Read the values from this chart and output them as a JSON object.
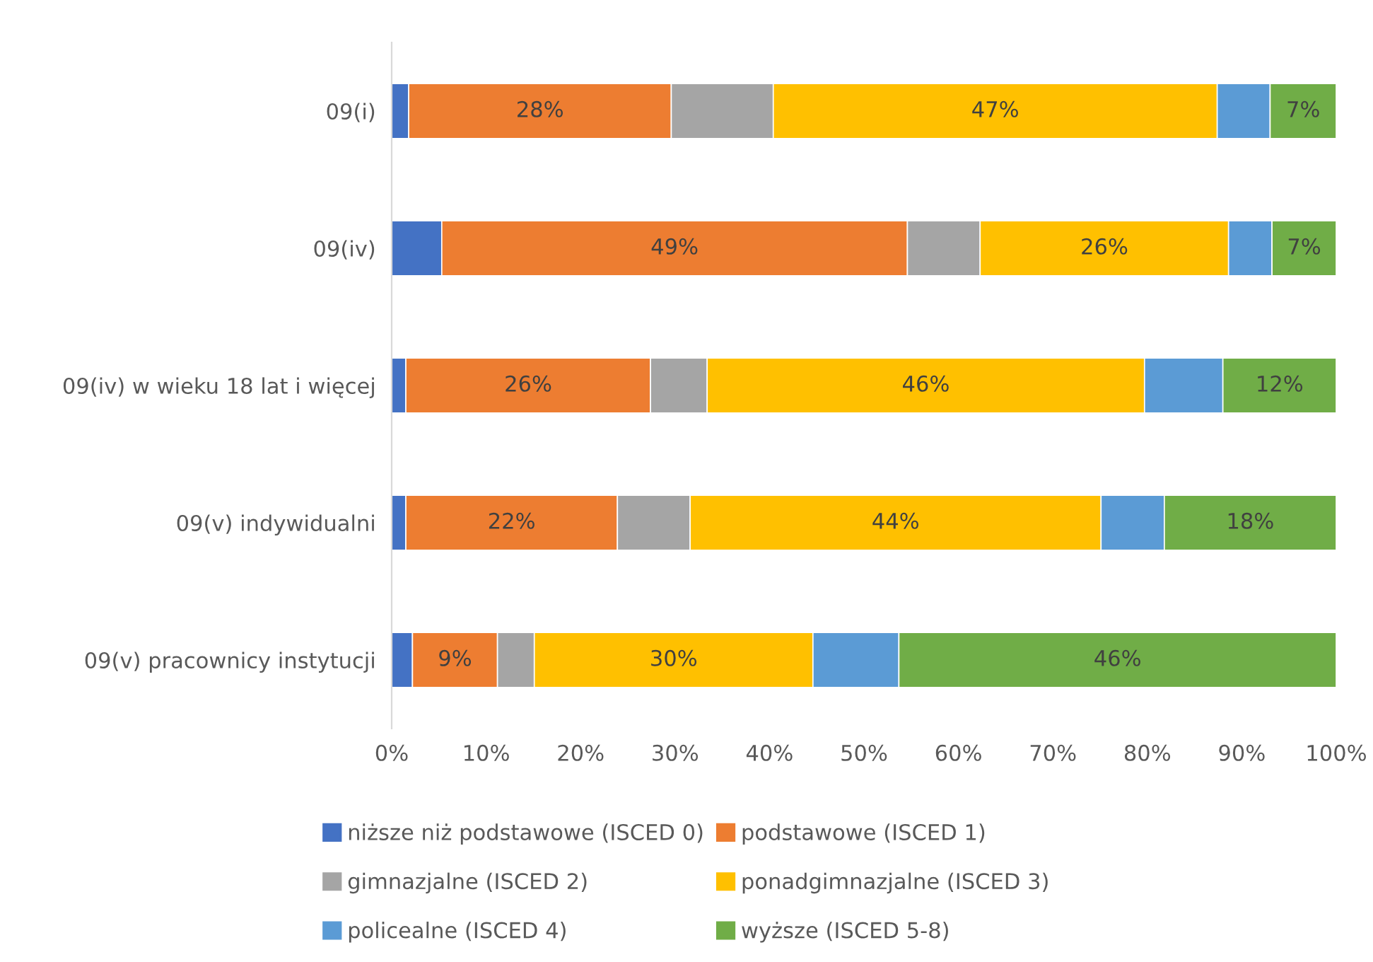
{
  "chart_data": {
    "type": "bar",
    "orientation": "horizontal",
    "stacked": true,
    "categories": [
      "09(i)",
      "09(iv)",
      "09(iv) w wieku 18 lat i więcej",
      "09(v) indywidualni",
      "09(v) pracownicy instytucji"
    ],
    "series": [
      {
        "name": "niższe niż podstawowe (ISCED 0)",
        "color": "#4472c4",
        "values": [
          1.8,
          5.3,
          1.5,
          1.5,
          2.2
        ]
      },
      {
        "name": "podstawowe (ISCED 1)",
        "color": "#ed7d31",
        "values": [
          27.8,
          49.3,
          25.9,
          22.4,
          9.0
        ],
        "value_labels": [
          "28%",
          "49%",
          "26%",
          "22%",
          "9%"
        ]
      },
      {
        "name": "gimnazjalne (ISCED 2)",
        "color": "#a5a5a5",
        "values": [
          10.8,
          7.7,
          6.0,
          7.7,
          3.9
        ]
      },
      {
        "name": "ponadgimnazjalne (ISCED 3)",
        "color": "#ffc000",
        "values": [
          47.0,
          26.3,
          46.3,
          43.5,
          29.5
        ],
        "value_labels": [
          "47%",
          "26%",
          "46%",
          "44%",
          "30%"
        ]
      },
      {
        "name": "policealne (ISCED 4)",
        "color": "#5b9bd5",
        "values": [
          5.6,
          4.6,
          8.3,
          6.7,
          9.1
        ]
      },
      {
        "name": "wyższe (ISCED 5-8)",
        "color": "#70ad47",
        "values": [
          7.0,
          6.8,
          12.0,
          18.2,
          46.3
        ],
        "value_labels": [
          "7%",
          "7%",
          "12%",
          "18%",
          "46%"
        ]
      }
    ],
    "xlim": [
      0,
      100
    ],
    "xticks": [
      {
        "value": 0,
        "label": "0%"
      },
      {
        "value": 10,
        "label": "10%"
      },
      {
        "value": 20,
        "label": "20%"
      },
      {
        "value": 30,
        "label": "30%"
      },
      {
        "value": 40,
        "label": "40%"
      },
      {
        "value": 50,
        "label": "50%"
      },
      {
        "value": 60,
        "label": "60%"
      },
      {
        "value": 70,
        "label": "70%"
      },
      {
        "value": 80,
        "label": "80%"
      },
      {
        "value": 90,
        "label": "90%"
      },
      {
        "value": 100,
        "label": "100%"
      }
    ],
    "grid": false,
    "legend": "bottom"
  }
}
